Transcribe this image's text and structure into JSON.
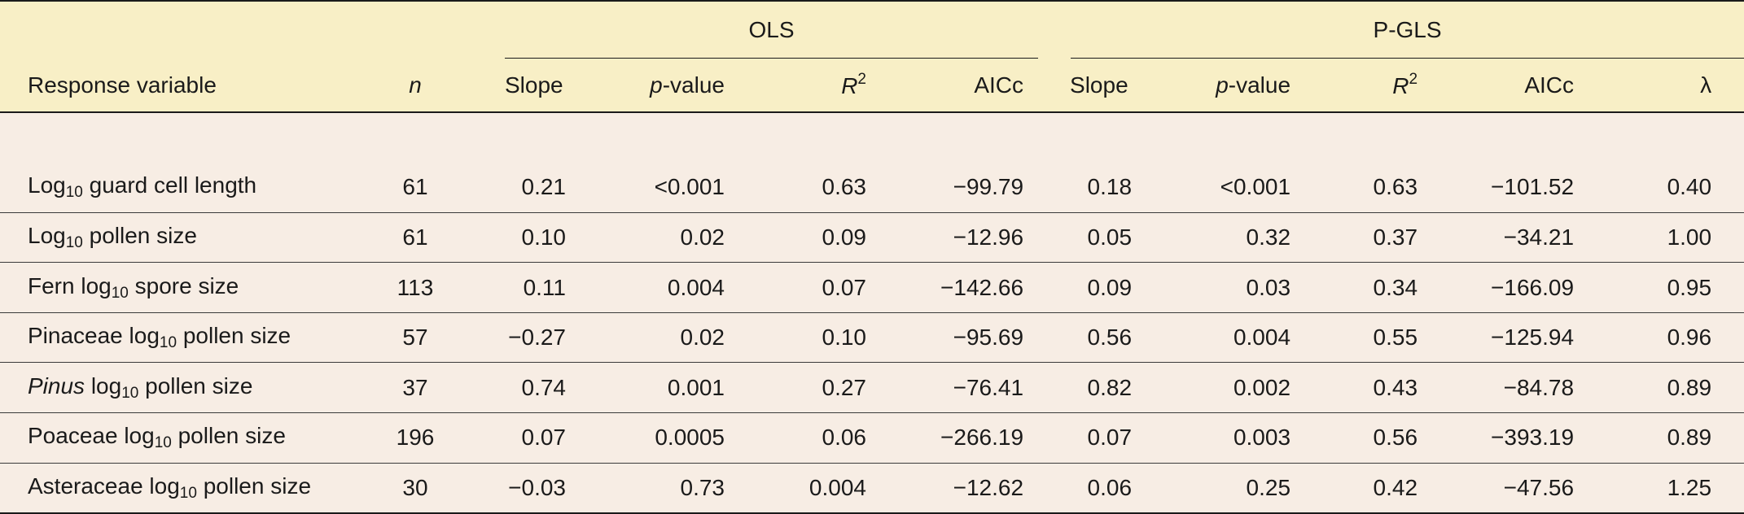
{
  "header": {
    "ols_label": "OLS",
    "pgls_label": "P-GLS",
    "response_label": "Response variable",
    "n_label": "n",
    "slope": "Slope",
    "p_italic": "p",
    "p_rest": "-value",
    "r_italic": "R",
    "r_sup": "2",
    "aicc": "AICc",
    "lambda": "λ"
  },
  "rows": [
    {
      "pre": "Log",
      "sub": "10",
      "post": " guard cell length",
      "italic": "",
      "n": "61",
      "ols": {
        "slope": "0.21",
        "p": "<0.001",
        "r2": "0.63",
        "aicc": "−99.79"
      },
      "pgls": {
        "slope": "0.18",
        "p": "<0.001",
        "r2": "0.63",
        "aicc": "−101.52",
        "lambda": "0.40"
      }
    },
    {
      "pre": "Log",
      "sub": "10",
      "post": " pollen size",
      "italic": "",
      "n": "61",
      "ols": {
        "slope": "0.10",
        "p": "0.02",
        "r2": "0.09",
        "aicc": "−12.96"
      },
      "pgls": {
        "slope": "0.05",
        "p": "0.32",
        "r2": "0.37",
        "aicc": "−34.21",
        "lambda": "1.00"
      }
    },
    {
      "pre": "Fern log",
      "sub": "10",
      "post": " spore size",
      "italic": "",
      "n": "113",
      "ols": {
        "slope": "0.11",
        "p": "0.004",
        "r2": "0.07",
        "aicc": "−142.66"
      },
      "pgls": {
        "slope": "0.09",
        "p": "0.03",
        "r2": "0.34",
        "aicc": "−166.09",
        "lambda": "0.95"
      }
    },
    {
      "pre": "Pinaceae log",
      "sub": "10",
      "post": " pollen size",
      "italic": "",
      "n": "57",
      "ols": {
        "slope": "−0.27",
        "p": "0.02",
        "r2": "0.10",
        "aicc": "−95.69"
      },
      "pgls": {
        "slope": "0.56",
        "p": "0.004",
        "r2": "0.55",
        "aicc": "−125.94",
        "lambda": "0.96"
      }
    },
    {
      "pre": " log",
      "sub": "10",
      "post": " pollen size",
      "italic": "Pinus",
      "n": "37",
      "ols": {
        "slope": "0.74",
        "p": "0.001",
        "r2": "0.27",
        "aicc": "−76.41"
      },
      "pgls": {
        "slope": "0.82",
        "p": "0.002",
        "r2": "0.43",
        "aicc": "−84.78",
        "lambda": "0.89"
      }
    },
    {
      "pre": "Poaceae log",
      "sub": "10",
      "post": " pollen size",
      "italic": "",
      "n": "196",
      "ols": {
        "slope": "0.07",
        "p": "0.0005",
        "r2": "0.06",
        "aicc": "−266.19"
      },
      "pgls": {
        "slope": "0.07",
        "p": "0.003",
        "r2": "0.56",
        "aicc": "−393.19",
        "lambda": "0.89"
      }
    },
    {
      "pre": "Asteraceae log",
      "sub": "10",
      "post": " pollen size",
      "italic": "",
      "n": "30",
      "ols": {
        "slope": "−0.03",
        "p": "0.73",
        "r2": "0.004",
        "aicc": "−12.62"
      },
      "pgls": {
        "slope": "0.06",
        "p": "0.25",
        "r2": "0.42",
        "aicc": "−47.56",
        "lambda": "1.25"
      }
    }
  ]
}
